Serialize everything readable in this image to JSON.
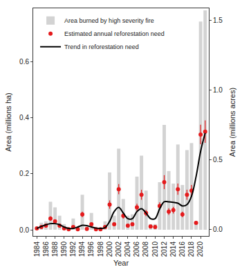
{
  "chart_data": {
    "type": "bar",
    "x_label": "Year",
    "y_label": "Area (millions ha)",
    "y2_label": "Area (millions acres)",
    "x": [
      1984,
      1985,
      1986,
      1987,
      1988,
      1989,
      1990,
      1991,
      1992,
      1993,
      1994,
      1995,
      1996,
      1997,
      1998,
      1999,
      2000,
      2001,
      2002,
      2003,
      2004,
      2005,
      2006,
      2007,
      2008,
      2009,
      2010,
      2011,
      2012,
      2013,
      2014,
      2015,
      2016,
      2017,
      2018,
      2019,
      2020,
      2021
    ],
    "xlim": [
      1983.2,
      2021.8
    ],
    "xticks": [
      1984,
      1986,
      1988,
      1990,
      1992,
      1994,
      1996,
      1998,
      2000,
      2002,
      2004,
      2006,
      2008,
      2010,
      2012,
      2014,
      2016,
      2018,
      2020
    ],
    "ylim": [
      -0.022,
      0.79
    ],
    "yticks": [
      {
        "value": 0,
        "label": "0.0"
      },
      0.2,
      0.4,
      0.6
    ],
    "y2lim": [
      -0.045,
      1.585
    ],
    "y2ticks": [
      {
        "value": 0,
        "label": "0.0"
      },
      0.5,
      {
        "value": 1,
        "label": "1.0"
      },
      1.5
    ],
    "grid": false,
    "legend": "top-left",
    "series": [
      {
        "name": "Area burned by high severity fire",
        "type": "bar",
        "axis": "y2",
        "color": "#d3d3d3",
        "values": [
          0.01,
          0.05,
          0.06,
          0.2,
          0.16,
          0.1,
          0.04,
          0.01,
          0.08,
          0.02,
          0.25,
          0.02,
          0.12,
          0.02,
          0.01,
          0.06,
          0.41,
          0.1,
          0.58,
          0.22,
          0.1,
          0.11,
          0.38,
          0.53,
          0.28,
          0.04,
          0.04,
          0.34,
          0.75,
          0.42,
          0.33,
          0.61,
          0.32,
          0.57,
          0.62,
          0.06,
          1.49,
          1.57
        ]
      },
      {
        "name": "Estimated annual reforestation need",
        "type": "scatter",
        "marker": "circle",
        "color": "#e41a1c",
        "values": [
          0.005,
          0.01,
          0.015,
          0.04,
          0.03,
          0.015,
          0.005,
          0.002,
          0.01,
          0.002,
          0.055,
          0.003,
          0.02,
          0.002,
          0.002,
          0.01,
          0.09,
          0.02,
          0.145,
          0.05,
          0.015,
          0.02,
          0.08,
          0.125,
          0.06,
          0.012,
          0.01,
          0.085,
          0.17,
          0.065,
          0.07,
          0.145,
          0.055,
          0.125,
          0.14,
          0.025,
          0.34,
          0.35
        ],
        "errors": [
          0.002,
          0.003,
          0.004,
          0.008,
          0.006,
          0.004,
          0.002,
          0.001,
          0.003,
          0.001,
          0.01,
          0.001,
          0.005,
          0.001,
          0.001,
          0.003,
          0.015,
          0.005,
          0.018,
          0.01,
          0.004,
          0.005,
          0.013,
          0.018,
          0.011,
          0.003,
          0.003,
          0.013,
          0.025,
          0.012,
          0.012,
          0.02,
          0.01,
          0.018,
          0.02,
          0.005,
          0.035,
          0.04
        ]
      },
      {
        "name": "Trend in reforestation need",
        "type": "line",
        "line_style": "solid",
        "color": "#000000",
        "values": [
          0.005,
          0.012,
          0.018,
          0.022,
          0.022,
          0.018,
          0.01,
          0.005,
          0.005,
          0.01,
          0.016,
          0.015,
          0.01,
          0.006,
          0.005,
          0.008,
          0.03,
          0.065,
          0.08,
          0.06,
          0.04,
          0.04,
          0.065,
          0.075,
          0.06,
          0.04,
          0.04,
          0.075,
          0.1,
          0.1,
          0.098,
          0.095,
          0.085,
          0.09,
          0.12,
          0.19,
          0.28,
          0.345
        ]
      }
    ]
  }
}
